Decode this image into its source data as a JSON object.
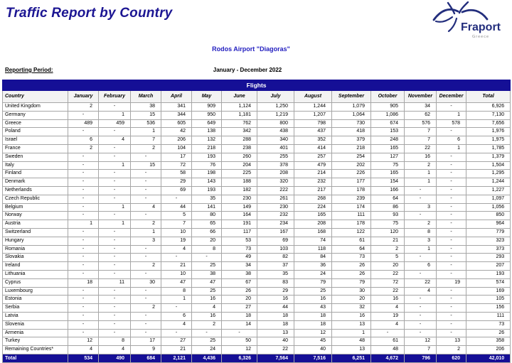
{
  "page": {
    "title": "Traffic Report by Country",
    "subtitle": "Rodos Airport \"Diagoras\"",
    "reporting_period_label": "Reporting Period:",
    "reporting_period_value": "January - December 2022"
  },
  "logo": {
    "brand": "Fraport",
    "region": "Greece",
    "icon": "fraport-star-icon",
    "brand_color": "#232e7d"
  },
  "colors": {
    "banner_navy": "#150f96",
    "title_navy": "#1c1693",
    "subtitle_blue": "#2420c0",
    "grid_gray": "#a6a6a6"
  },
  "table": {
    "banner": "Flights",
    "columns": [
      "Country",
      "January",
      "February",
      "March",
      "April",
      "May",
      "June",
      "July",
      "August",
      "September",
      "October",
      "November",
      "December",
      "Total"
    ],
    "rows": [
      {
        "country": "United Kingdom",
        "values": [
          "2",
          "-",
          "38",
          "341",
          "909",
          "1,124",
          "1,250",
          "1,244",
          "1,079",
          "905",
          "34",
          "-",
          "6,926"
        ]
      },
      {
        "country": "Germany",
        "values": [
          "-",
          "1",
          "15",
          "344",
          "950",
          "1,181",
          "1,219",
          "1,207",
          "1,064",
          "1,086",
          "62",
          "1",
          "7,130"
        ]
      },
      {
        "country": "Greece",
        "values": [
          "489",
          "459",
          "536",
          "605",
          "649",
          "762",
          "800",
          "798",
          "730",
          "674",
          "576",
          "578",
          "7,656"
        ]
      },
      {
        "country": "Poland",
        "values": [
          "-",
          "-",
          "1",
          "42",
          "138",
          "342",
          "438",
          "437",
          "418",
          "153",
          "7",
          "-",
          "1,976"
        ]
      },
      {
        "country": "Israel",
        "values": [
          "6",
          "4",
          "7",
          "206",
          "132",
          "288",
          "340",
          "352",
          "379",
          "248",
          "7",
          "6",
          "1,975"
        ]
      },
      {
        "country": "France",
        "values": [
          "2",
          "-",
          "2",
          "104",
          "218",
          "238",
          "401",
          "414",
          "218",
          "165",
          "22",
          "1",
          "1,785"
        ]
      },
      {
        "country": "Sweden",
        "values": [
          "-",
          "-",
          "-",
          "17",
          "193",
          "260",
          "255",
          "257",
          "254",
          "127",
          "16",
          "-",
          "1,379"
        ]
      },
      {
        "country": "Italy",
        "values": [
          "-",
          "1",
          "15",
          "72",
          "76",
          "204",
          "378",
          "479",
          "202",
          "75",
          "2",
          "-",
          "1,504"
        ]
      },
      {
        "country": "Finland",
        "values": [
          "-",
          "-",
          "-",
          "58",
          "198",
          "225",
          "208",
          "214",
          "226",
          "165",
          "1",
          "-",
          "1,295"
        ]
      },
      {
        "country": "Denmark",
        "values": [
          "-",
          "-",
          "-",
          "29",
          "143",
          "188",
          "320",
          "232",
          "177",
          "154",
          "1",
          "-",
          "1,244"
        ]
      },
      {
        "country": "Netherlands",
        "values": [
          "-",
          "-",
          "-",
          "69",
          "193",
          "182",
          "222",
          "217",
          "178",
          "166",
          "-",
          "-",
          "1,227"
        ]
      },
      {
        "country": "Czech Republic",
        "values": [
          "-",
          "-",
          "-",
          "-",
          "35",
          "230",
          "261",
          "268",
          "239",
          "64",
          "-",
          "-",
          "1,097"
        ]
      },
      {
        "country": "Belgium",
        "values": [
          "-",
          "1",
          "4",
          "44",
          "141",
          "149",
          "230",
          "224",
          "174",
          "86",
          "3",
          "-",
          "1,056"
        ]
      },
      {
        "country": "Norway",
        "values": [
          "-",
          "-",
          "-",
          "5",
          "80",
          "164",
          "232",
          "165",
          "111",
          "93",
          "-",
          "-",
          "850"
        ]
      },
      {
        "country": "Austria",
        "values": [
          "1",
          "1",
          "2",
          "7",
          "65",
          "191",
          "234",
          "208",
          "178",
          "75",
          "2",
          "-",
          "964"
        ]
      },
      {
        "country": "Switzerland",
        "values": [
          "-",
          "-",
          "1",
          "10",
          "66",
          "117",
          "167",
          "168",
          "122",
          "120",
          "8",
          "-",
          "779"
        ]
      },
      {
        "country": "Hungary",
        "values": [
          "-",
          "-",
          "3",
          "19",
          "20",
          "53",
          "69",
          "74",
          "61",
          "21",
          "3",
          "-",
          "323"
        ]
      },
      {
        "country": "Romania",
        "values": [
          "-",
          "-",
          "-",
          "4",
          "8",
          "73",
          "103",
          "118",
          "64",
          "2",
          "1",
          "-",
          "373"
        ]
      },
      {
        "country": "Slovakia",
        "values": [
          "-",
          "-",
          "-",
          "-",
          "-",
          "49",
          "82",
          "84",
          "73",
          "5",
          "-",
          "-",
          "293"
        ]
      },
      {
        "country": "Ireland",
        "values": [
          "-",
          "-",
          "2",
          "21",
          "25",
          "34",
          "37",
          "36",
          "26",
          "20",
          "6",
          "-",
          "207"
        ]
      },
      {
        "country": "Lithuania",
        "values": [
          "-",
          "-",
          "-",
          "10",
          "38",
          "38",
          "35",
          "24",
          "26",
          "22",
          "-",
          "-",
          "193"
        ]
      },
      {
        "country": "Cyprus",
        "values": [
          "18",
          "11",
          "30",
          "47",
          "47",
          "67",
          "83",
          "79",
          "79",
          "72",
          "22",
          "19",
          "574"
        ]
      },
      {
        "country": "Luxembourg",
        "values": [
          "-",
          "-",
          "-",
          "8",
          "25",
          "26",
          "29",
          "25",
          "30",
          "22",
          "4",
          "-",
          "169"
        ]
      },
      {
        "country": "Estonia",
        "values": [
          "-",
          "-",
          "-",
          "1",
          "16",
          "20",
          "16",
          "16",
          "20",
          "16",
          "-",
          "-",
          "105"
        ]
      },
      {
        "country": "Serbia",
        "values": [
          "-",
          "-",
          "2",
          "-",
          "4",
          "27",
          "44",
          "43",
          "32",
          "4",
          "-",
          "-",
          "156"
        ]
      },
      {
        "country": "Latvia",
        "values": [
          "-",
          "-",
          "-",
          "6",
          "16",
          "18",
          "18",
          "18",
          "16",
          "19",
          "-",
          "-",
          "111"
        ]
      },
      {
        "country": "Slovenia",
        "values": [
          "-",
          "-",
          "-",
          "4",
          "2",
          "14",
          "18",
          "18",
          "13",
          "4",
          "-",
          "-",
          "73"
        ]
      },
      {
        "country": "Armenia",
        "values": [
          "-",
          "-",
          "-",
          "-",
          "-",
          "-",
          "13",
          "12",
          "1",
          "-",
          "-",
          "-",
          "26"
        ]
      },
      {
        "country": "Turkey",
        "values": [
          "12",
          "8",
          "17",
          "27",
          "25",
          "50",
          "40",
          "45",
          "48",
          "61",
          "12",
          "13",
          "358"
        ]
      },
      {
        "country": "Remaining Countries*",
        "values": [
          "4",
          "4",
          "9",
          "21",
          "24",
          "12",
          "22",
          "40",
          "13",
          "48",
          "7",
          "2",
          "206"
        ]
      }
    ],
    "total_row": {
      "label": "Total",
      "values": [
        "534",
        "490",
        "684",
        "2,121",
        "4,436",
        "6,326",
        "7,564",
        "7,516",
        "6,251",
        "4,672",
        "796",
        "620",
        "42,010"
      ]
    }
  }
}
